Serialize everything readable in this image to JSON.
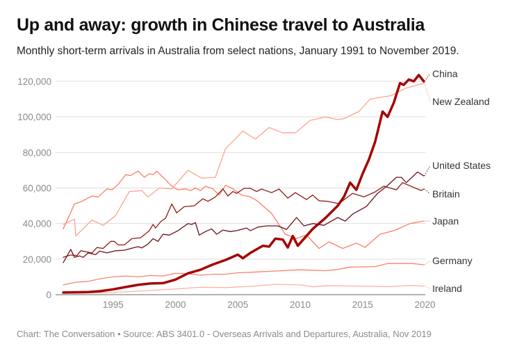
{
  "title": "Up and away: growth in Chinese travel to Australia",
  "subtitle": "Monthly short-term arrivals in Australia from select nations, January 1991 to November 2019.",
  "footer": "Chart: The Conversation • Source: ABS 3401.0 - Overseas Arrivals and Departures, Australia, Nov 2019",
  "chart_data": {
    "type": "line",
    "title": "Up and away: growth in Chinese travel to Australia",
    "xlabel": "",
    "ylabel": "",
    "xlim": [
      1991.0,
      2019.9
    ],
    "ylim": [
      0,
      120000
    ],
    "x_ticks": [
      "1995",
      "2000",
      "2005",
      "2010",
      "2015",
      "2020"
    ],
    "y_ticks": [
      "0",
      "20,000",
      "40,000",
      "60,000",
      "80,000",
      "100,000",
      "120,000"
    ],
    "grid": true,
    "legend": "direct labels at right end of lines",
    "series": [
      {
        "name": "China",
        "color": "#a50000",
        "width": 3.5,
        "points": [
          [
            1991,
            1200
          ],
          [
            1993,
            1500
          ],
          [
            1994,
            2000
          ],
          [
            1995,
            3000
          ],
          [
            1996,
            4300
          ],
          [
            1997,
            5500
          ],
          [
            1998,
            6300
          ],
          [
            1999,
            6500
          ],
          [
            2000,
            8500
          ],
          [
            2001,
            12000
          ],
          [
            2002,
            14000
          ],
          [
            2003,
            17000
          ],
          [
            2004,
            19500
          ],
          [
            2005,
            22500
          ],
          [
            2005.4,
            20500
          ],
          [
            2006,
            23500
          ],
          [
            2007,
            27500
          ],
          [
            2007.5,
            27000
          ],
          [
            2008,
            31500
          ],
          [
            2008.6,
            31000
          ],
          [
            2009,
            26500
          ],
          [
            2009.4,
            33000
          ],
          [
            2009.8,
            27500
          ],
          [
            2010.5,
            33000
          ],
          [
            2011,
            37000
          ],
          [
            2012,
            43000
          ],
          [
            2013,
            50000
          ],
          [
            2013.5,
            55000
          ],
          [
            2014,
            63000
          ],
          [
            2014.5,
            59000
          ],
          [
            2015,
            68000
          ],
          [
            2015.5,
            76000
          ],
          [
            2016,
            86000
          ],
          [
            2016.6,
            103000
          ],
          [
            2017,
            100000
          ],
          [
            2017.5,
            108000
          ],
          [
            2018,
            119000
          ],
          [
            2018.3,
            118000
          ],
          [
            2018.7,
            121000
          ],
          [
            2019.1,
            120000
          ],
          [
            2019.5,
            123500
          ],
          [
            2019.9,
            120000
          ]
        ]
      },
      {
        "name": "New Zealand",
        "color": "#ffa28d",
        "width": 1.3,
        "points": [
          [
            1991,
            39500
          ],
          [
            1991.9,
            42500
          ],
          [
            1992,
            33000
          ],
          [
            1993.3,
            42000
          ],
          [
            1994.2,
            39000
          ],
          [
            1995.2,
            44500
          ],
          [
            1996.3,
            58000
          ],
          [
            1997.3,
            58500
          ],
          [
            1997.8,
            55000
          ],
          [
            1998.7,
            60000
          ],
          [
            1999.7,
            59500
          ],
          [
            2001,
            70000
          ],
          [
            2002.1,
            65500
          ],
          [
            2003.2,
            66000
          ],
          [
            2004,
            82000
          ],
          [
            2005.4,
            92000
          ],
          [
            2006.4,
            87500
          ],
          [
            2007.5,
            94000
          ],
          [
            2008.6,
            91000
          ],
          [
            2009.6,
            91000
          ],
          [
            2010.8,
            98000
          ],
          [
            2012,
            100000
          ],
          [
            2013,
            98500
          ],
          [
            2013.5,
            99000
          ],
          [
            2014.7,
            103000
          ],
          [
            2015.6,
            110000
          ],
          [
            2017.3,
            112000
          ],
          [
            2018.4,
            116000
          ],
          [
            2019.9,
            119000
          ]
        ]
      },
      {
        "name": "United States",
        "color": "#6b0f1a",
        "width": 1.3,
        "points": [
          [
            1991,
            18000
          ],
          [
            1991.6,
            25500
          ],
          [
            1991.9,
            21000
          ],
          [
            1992.3,
            21800
          ],
          [
            1992.6,
            21000
          ],
          [
            1993,
            23500
          ],
          [
            1993.6,
            22500
          ],
          [
            1993.9,
            24500
          ],
          [
            1994.5,
            23500
          ],
          [
            1995.2,
            24700
          ],
          [
            1995.9,
            25000
          ],
          [
            1996.7,
            26500
          ],
          [
            1997,
            27000
          ],
          [
            1997.3,
            26300
          ],
          [
            1997.8,
            28500
          ],
          [
            1998.2,
            31500
          ],
          [
            1998.6,
            30000
          ],
          [
            1999,
            34000
          ],
          [
            1999.5,
            33500
          ],
          [
            2000.2,
            36000
          ],
          [
            2001,
            40000
          ],
          [
            2001.3,
            39500
          ],
          [
            2001.6,
            40500
          ],
          [
            2001.9,
            33500
          ],
          [
            2002.4,
            35500
          ],
          [
            2002.9,
            37000
          ],
          [
            2003.3,
            34000
          ],
          [
            2003.8,
            36300
          ],
          [
            2004.4,
            35500
          ],
          [
            2004.9,
            36000
          ],
          [
            2005.7,
            37500
          ],
          [
            2006,
            36000
          ],
          [
            2006.6,
            38000
          ],
          [
            2007.3,
            38700
          ],
          [
            2008.2,
            38700
          ],
          [
            2008.9,
            36700
          ],
          [
            2009.7,
            43400
          ],
          [
            2010.3,
            38700
          ],
          [
            2011,
            40000
          ],
          [
            2011.9,
            39000
          ],
          [
            2013,
            43400
          ],
          [
            2013.6,
            41400
          ],
          [
            2014.2,
            45300
          ],
          [
            2015.3,
            49600
          ],
          [
            2016.2,
            57000
          ],
          [
            2017,
            61400
          ],
          [
            2017.7,
            66000
          ],
          [
            2018.1,
            66000
          ],
          [
            2018.5,
            63000
          ],
          [
            2019.4,
            69000
          ],
          [
            2019.9,
            66800
          ]
        ]
      },
      {
        "name": "Britain",
        "color": "#8c1c13",
        "width": 1.3,
        "points": [
          [
            1991,
            21000
          ],
          [
            1991.6,
            22300
          ],
          [
            1992.1,
            22000
          ],
          [
            1992.4,
            24700
          ],
          [
            1993.3,
            23500
          ],
          [
            1993.7,
            26500
          ],
          [
            1994.2,
            26000
          ],
          [
            1994.8,
            30000
          ],
          [
            1995.1,
            30000
          ],
          [
            1995.4,
            28000
          ],
          [
            1995.9,
            28000
          ],
          [
            1996.5,
            31500
          ],
          [
            1997.2,
            32000
          ],
          [
            1997.9,
            36000
          ],
          [
            1998.2,
            39500
          ],
          [
            1998.4,
            37500
          ],
          [
            1998.8,
            41000
          ],
          [
            1999.2,
            43000
          ],
          [
            1999.7,
            51000
          ],
          [
            2000.1,
            46000
          ],
          [
            2000.7,
            49500
          ],
          [
            2001.5,
            50000
          ],
          [
            2002.2,
            54000
          ],
          [
            2002.6,
            52500
          ],
          [
            2003.2,
            55000
          ],
          [
            2003.8,
            59500
          ],
          [
            2004.2,
            55500
          ],
          [
            2004.6,
            58000
          ],
          [
            2004.9,
            57000
          ],
          [
            2005.5,
            59800
          ],
          [
            2006,
            59800
          ],
          [
            2006.5,
            58000
          ],
          [
            2006.9,
            59400
          ],
          [
            2007.7,
            57400
          ],
          [
            2008.3,
            59400
          ],
          [
            2009,
            54300
          ],
          [
            2009.6,
            57400
          ],
          [
            2010.5,
            53500
          ],
          [
            2011,
            56000
          ],
          [
            2011.5,
            52800
          ],
          [
            2012.2,
            52500
          ],
          [
            2013.1,
            51200
          ],
          [
            2014.2,
            57000
          ],
          [
            2015.1,
            55000
          ],
          [
            2016,
            57800
          ],
          [
            2016.7,
            61000
          ],
          [
            2017.7,
            59000
          ],
          [
            2018.2,
            63000
          ],
          [
            2019.2,
            60000
          ],
          [
            2019.7,
            58600
          ],
          [
            2019.9,
            59400
          ]
        ]
      },
      {
        "name": "Japan",
        "color": "#ff7c66",
        "width": 1.3,
        "points": [
          [
            1991,
            37000
          ],
          [
            1991.9,
            51000
          ],
          [
            1992.5,
            52500
          ],
          [
            1993.3,
            55500
          ],
          [
            1993.8,
            55000
          ],
          [
            1994.5,
            59500
          ],
          [
            1994.9,
            59000
          ],
          [
            1995.4,
            62000
          ],
          [
            1996,
            67500
          ],
          [
            1996.4,
            67000
          ],
          [
            1997,
            69500
          ],
          [
            1997.5,
            66000
          ],
          [
            1997.9,
            68000
          ],
          [
            1998.2,
            67500
          ],
          [
            1998.5,
            69500
          ],
          [
            1999,
            66000
          ],
          [
            1999.7,
            61000
          ],
          [
            2000.2,
            59000
          ],
          [
            2000.8,
            59500
          ],
          [
            2001.2,
            58500
          ],
          [
            2001.6,
            60000
          ],
          [
            2002,
            58500
          ],
          [
            2002.4,
            61000
          ],
          [
            2003,
            59500
          ],
          [
            2003.5,
            56000
          ],
          [
            2004,
            61500
          ],
          [
            2004.5,
            60000
          ],
          [
            2005.3,
            56000
          ],
          [
            2006,
            55000
          ],
          [
            2006.5,
            53000
          ],
          [
            2007.7,
            45700
          ],
          [
            2008.8,
            34000
          ],
          [
            2009.7,
            31600
          ],
          [
            2010.5,
            33600
          ],
          [
            2011.5,
            26000
          ],
          [
            2012.3,
            29700
          ],
          [
            2013.4,
            26000
          ],
          [
            2014.5,
            29000
          ],
          [
            2015.2,
            26600
          ],
          [
            2016.4,
            34000
          ],
          [
            2017.5,
            36000
          ],
          [
            2018.8,
            40000
          ],
          [
            2019.9,
            41400
          ]
        ]
      },
      {
        "name": "Germany",
        "color": "#ff7f6e",
        "width": 1.3,
        "points": [
          [
            1991,
            5500
          ],
          [
            1992,
            7000
          ],
          [
            1993,
            7500
          ],
          [
            1994,
            9000
          ],
          [
            1995,
            10000
          ],
          [
            1996,
            10500
          ],
          [
            1997,
            10000
          ],
          [
            1998,
            10800
          ],
          [
            1999,
            10500
          ],
          [
            2000,
            12000
          ],
          [
            2001,
            11800
          ],
          [
            2002,
            11000
          ],
          [
            2003,
            11500
          ],
          [
            2004,
            11500
          ],
          [
            2005,
            12300
          ],
          [
            2006,
            12600
          ],
          [
            2008,
            13300
          ],
          [
            2010,
            14000
          ],
          [
            2012,
            13500
          ],
          [
            2013,
            14200
          ],
          [
            2014,
            15500
          ],
          [
            2016,
            15800
          ],
          [
            2017,
            17500
          ],
          [
            2019,
            17500
          ],
          [
            2019.9,
            16800
          ]
        ]
      },
      {
        "name": "Ireland",
        "color": "#ffb3a3",
        "width": 1.3,
        "points": [
          [
            1991,
            800
          ],
          [
            1995,
            1200
          ],
          [
            2000,
            3200
          ],
          [
            2002,
            4200
          ],
          [
            2004,
            4000
          ],
          [
            2006,
            4700
          ],
          [
            2008,
            5800
          ],
          [
            2010,
            5500
          ],
          [
            2011,
            4400
          ],
          [
            2012,
            5000
          ],
          [
            2015,
            4800
          ],
          [
            2017,
            4500
          ],
          [
            2019,
            5200
          ],
          [
            2019.9,
            4800
          ]
        ]
      }
    ]
  }
}
